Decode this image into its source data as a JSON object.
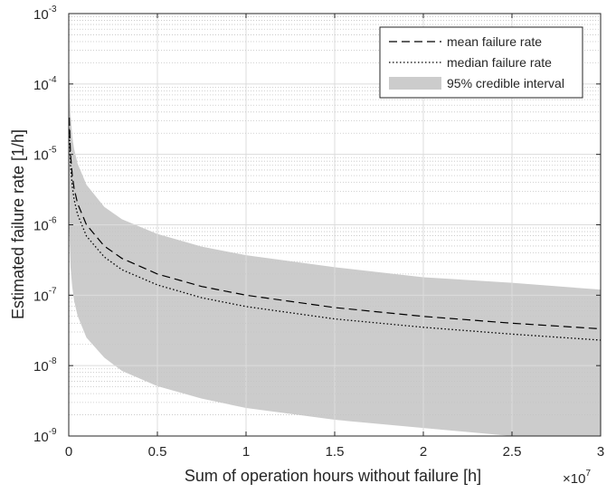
{
  "chart_data": {
    "type": "area",
    "xlabel": "Sum of operation hours without failure [h]",
    "ylabel": "Estimated failure rate [1/h]",
    "x_multiplier_label": {
      "base": "×10",
      "exp": "7"
    },
    "xlim": [
      0,
      30000000
    ],
    "ylim": [
      1e-09,
      0.001
    ],
    "yscale": "log",
    "grid": true,
    "minor_grid": true,
    "legend_position": "top-right",
    "x_ticks": [
      {
        "value": 0,
        "label": "0"
      },
      {
        "value": 5000000,
        "label": "0.5"
      },
      {
        "value": 10000000,
        "label": "1"
      },
      {
        "value": 15000000,
        "label": "1.5"
      },
      {
        "value": 20000000,
        "label": "2"
      },
      {
        "value": 25000000,
        "label": "2.5"
      },
      {
        "value": 30000000,
        "label": "3"
      }
    ],
    "y_ticks": [
      {
        "value": 1e-09,
        "base": "10",
        "exp": "-9"
      },
      {
        "value": 1e-08,
        "base": "10",
        "exp": "-8"
      },
      {
        "value": 1e-07,
        "base": "10",
        "exp": "-7"
      },
      {
        "value": 1e-06,
        "base": "10",
        "exp": "-6"
      },
      {
        "value": 1e-05,
        "base": "10",
        "exp": "-5"
      },
      {
        "value": 0.0001,
        "base": "10",
        "exp": "-4"
      },
      {
        "value": 0.001,
        "base": "10",
        "exp": "-3"
      }
    ],
    "x": [
      100000,
      200000,
      300000,
      500000,
      1000000,
      2000000,
      3000000,
      5000000,
      7500000,
      10000000,
      15000000,
      20000000,
      25000000,
      30000000
    ],
    "series": [
      {
        "name": "mean failure rate",
        "style": "dashed",
        "color": "#000000",
        "values": [
          1e-05,
          5e-06,
          3.33e-06,
          2e-06,
          1e-06,
          5e-07,
          3.33e-07,
          2e-07,
          1.33e-07,
          1e-07,
          6.67e-08,
          5e-08,
          4e-08,
          3.33e-08
        ]
      },
      {
        "name": "median failure rate",
        "style": "dotted",
        "color": "#000000",
        "values": [
          6.9e-06,
          3.5e-06,
          2.3e-06,
          1.4e-06,
          6.9e-07,
          3.5e-07,
          2.3e-07,
          1.4e-07,
          9.2e-08,
          6.9e-08,
          4.6e-08,
          3.5e-08,
          2.8e-08,
          2.3e-08
        ]
      },
      {
        "name": "95% credible interval",
        "style": "band",
        "color": "#cccccc",
        "upper": [
          3.7e-05,
          1.8e-05,
          1.2e-05,
          7.4e-06,
          3.7e-06,
          1.8e-06,
          1.2e-06,
          7.4e-07,
          4.9e-07,
          3.7e-07,
          2.5e-07,
          1.8e-07,
          1.5e-07,
          1.2e-07
        ],
        "lower": [
          2.5e-07,
          1.3e-07,
          8.4e-08,
          5.1e-08,
          2.5e-08,
          1.3e-08,
          8.4e-09,
          5.1e-09,
          3.4e-09,
          2.5e-09,
          1.7e-09,
          1.3e-09,
          1e-09,
          8.4e-10
        ]
      }
    ]
  }
}
